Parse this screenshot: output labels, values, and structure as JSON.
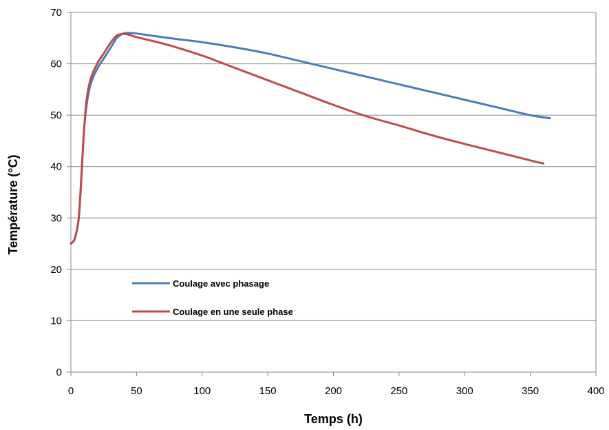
{
  "chart_data": {
    "type": "line",
    "title": "",
    "xlabel": "Temps (h)",
    "ylabel": "Température (°C)",
    "xlim": [
      0,
      400
    ],
    "ylim": [
      0,
      70
    ],
    "xticks": [
      0,
      50,
      100,
      150,
      200,
      250,
      300,
      350,
      400
    ],
    "yticks": [
      0,
      10,
      20,
      30,
      40,
      50,
      60,
      70
    ],
    "grid": "horizontal",
    "legend_position": "lower-left inside plot",
    "series": [
      {
        "name": "Coulage avec phasage",
        "color": "#4a7ebb",
        "x": [
          0,
          3,
          6,
          8,
          10,
          12,
          15,
          20,
          25,
          30,
          35,
          40,
          45,
          50,
          75,
          100,
          125,
          150,
          175,
          200,
          225,
          250,
          275,
          300,
          325,
          350,
          365
        ],
        "y": [
          25,
          26,
          30,
          38,
          47,
          52,
          56,
          59,
          61,
          63,
          65,
          65.9,
          66,
          65.9,
          65,
          64.2,
          63.2,
          62,
          60.5,
          59,
          57.5,
          56,
          54.5,
          53,
          51.5,
          50,
          49.4
        ]
      },
      {
        "name": "Coulage en une seule phase",
        "color": "#be4b48",
        "x": [
          0,
          3,
          6,
          8,
          10,
          12,
          15,
          20,
          25,
          30,
          35,
          40,
          45,
          50,
          75,
          100,
          125,
          150,
          175,
          200,
          225,
          250,
          275,
          300,
          325,
          350,
          360
        ],
        "y": [
          25,
          26,
          30,
          38,
          47,
          53,
          57,
          60,
          62,
          64,
          65.5,
          65.8,
          65.6,
          65.2,
          63.6,
          61.6,
          59.2,
          56.8,
          54.4,
          52,
          49.8,
          48,
          46.1,
          44.4,
          42.8,
          41.2,
          40.6
        ]
      }
    ]
  }
}
